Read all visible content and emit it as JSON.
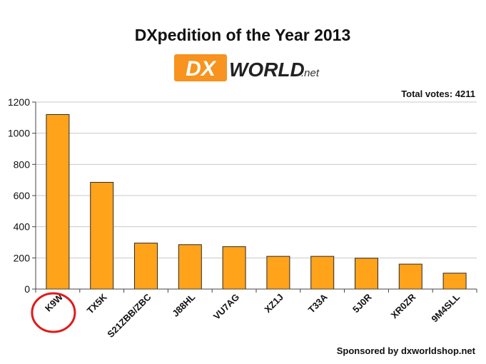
{
  "chart_data": {
    "type": "bar",
    "title": "DXpedition of the Year 2013",
    "logo": {
      "dx": "DX",
      "world": "WORLD",
      "net": ".net",
      "color": "#f7931e"
    },
    "total_votes": "Total votes: 4211",
    "sponsor": "Sponsored by dxworldshop.net",
    "categories": [
      "K9W",
      "TX5K",
      "S21ZBB/ZBC",
      "J88HL",
      "VU7AG",
      "XZ1J",
      "T33A",
      "5J0R",
      "XR0ZR",
      "9M4SLL"
    ],
    "values": [
      1120,
      685,
      295,
      285,
      272,
      210,
      210,
      198,
      160,
      102
    ],
    "ylim": [
      0,
      1200
    ],
    "yticks": [
      0,
      200,
      400,
      600,
      800,
      1000,
      1200
    ],
    "grid": true,
    "highlight": {
      "category": "K9W",
      "marker": "red-ellipse",
      "color": "#e01b1b"
    },
    "bar_color": "#ffa31a",
    "bar_edge_color": "#2a2a2a"
  }
}
